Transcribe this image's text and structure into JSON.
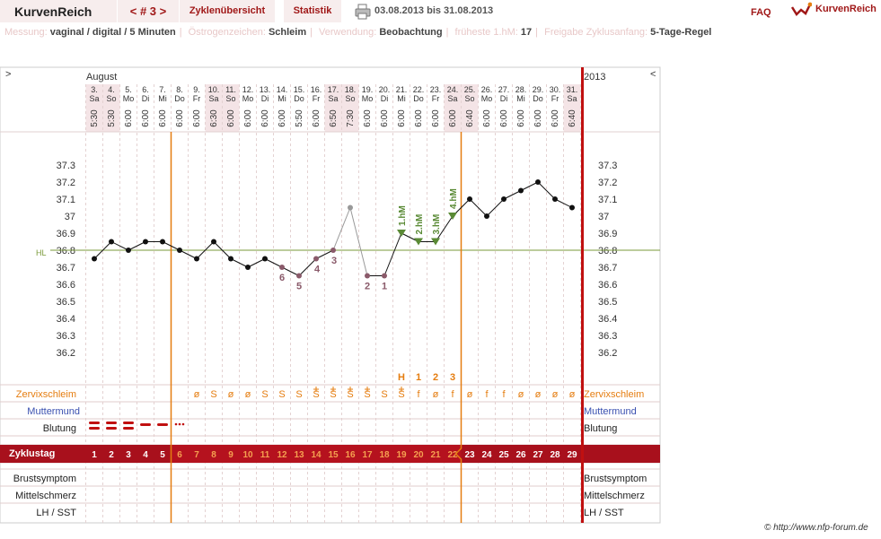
{
  "header": {
    "brand": "KurvenReich",
    "cycle_nav": "< # 3 >",
    "tabs": [
      "Zyklenübersicht",
      "Statistik"
    ],
    "print_icon": "printer-icon",
    "date_range": "03.08.2013 bis 31.08.2013",
    "faq": "FAQ",
    "logo_text": "KurvenReich",
    "logo_icon": "curve-logo-icon"
  },
  "settings": [
    {
      "label": "Messung:",
      "value": "vaginal / digital / 5 Minuten"
    },
    {
      "label": "Östrogenzeichen:",
      "value": "Schleim"
    },
    {
      "label": "Verwendung:",
      "value": "Beobachtung"
    },
    {
      "label": "früheste 1.hM:",
      "value": "17"
    },
    {
      "label": "Freigabe Zyklusanfang:",
      "value": "5-Tage-Regel"
    }
  ],
  "chart": {
    "nav_left": ">",
    "nav_right": "<",
    "month": "August",
    "year": "2013",
    "hl_label": "HL",
    "hl_value": 36.8,
    "y_ticks": [
      "37.3",
      "37.2",
      "37.1",
      "37",
      "36.9",
      "36.8",
      "36.7",
      "36.6",
      "36.5",
      "36.4",
      "36.3",
      "36.2"
    ],
    "days": [
      {
        "date": "3.",
        "wd": "Sa",
        "time": "5:30",
        "we": true
      },
      {
        "date": "4.",
        "wd": "So",
        "time": "5:30",
        "we": true
      },
      {
        "date": "5.",
        "wd": "Mo",
        "time": "6:00",
        "we": false
      },
      {
        "date": "6.",
        "wd": "Di",
        "time": "6:00",
        "we": false
      },
      {
        "date": "7.",
        "wd": "Mi",
        "time": "6:00",
        "we": false
      },
      {
        "date": "8.",
        "wd": "Do",
        "time": "6:00",
        "we": false
      },
      {
        "date": "9.",
        "wd": "Fr",
        "time": "6:00",
        "we": false
      },
      {
        "date": "10.",
        "wd": "Sa",
        "time": "6:30",
        "we": true
      },
      {
        "date": "11.",
        "wd": "So",
        "time": "6:00",
        "we": true
      },
      {
        "date": "12.",
        "wd": "Mo",
        "time": "6:00",
        "we": false
      },
      {
        "date": "13.",
        "wd": "Di",
        "time": "6:00",
        "we": false
      },
      {
        "date": "14.",
        "wd": "Mi",
        "time": "6:00",
        "we": false
      },
      {
        "date": "15.",
        "wd": "Do",
        "time": "5:50",
        "we": false
      },
      {
        "date": "16.",
        "wd": "Fr",
        "time": "6:00",
        "we": false
      },
      {
        "date": "17.",
        "wd": "Sa",
        "time": "6:50",
        "we": true
      },
      {
        "date": "18.",
        "wd": "So",
        "time": "7:30",
        "we": true
      },
      {
        "date": "19.",
        "wd": "Mo",
        "time": "6:00",
        "we": false
      },
      {
        "date": "20.",
        "wd": "Di",
        "time": "6:00",
        "we": false
      },
      {
        "date": "21.",
        "wd": "Mi",
        "time": "6:00",
        "we": false
      },
      {
        "date": "22.",
        "wd": "Do",
        "time": "6:00",
        "we": false
      },
      {
        "date": "23.",
        "wd": "Fr",
        "time": "6:00",
        "we": false
      },
      {
        "date": "24.",
        "wd": "Sa",
        "time": "6:00",
        "we": true
      },
      {
        "date": "25.",
        "wd": "So",
        "time": "6:40",
        "we": true
      },
      {
        "date": "26.",
        "wd": "Mo",
        "time": "6:00",
        "we": false
      },
      {
        "date": "27.",
        "wd": "Di",
        "time": "6:00",
        "we": false
      },
      {
        "date": "28.",
        "wd": "Mi",
        "time": "6:00",
        "we": false
      },
      {
        "date": "29.",
        "wd": "Do",
        "time": "6:00",
        "we": false
      },
      {
        "date": "30.",
        "wd": "Fr",
        "time": "6:00",
        "we": false
      },
      {
        "date": "31.",
        "wd": "Sa",
        "time": "6:40",
        "we": true
      }
    ],
    "temps": [
      36.75,
      36.85,
      36.8,
      36.85,
      36.85,
      36.8,
      36.75,
      36.85,
      36.75,
      36.7,
      36.75,
      36.7,
      36.65,
      36.75,
      36.8,
      37.05,
      36.65,
      36.65,
      36.9,
      36.85,
      36.85,
      37.0,
      37.1,
      37.0,
      37.1,
      37.15,
      37.2,
      37.1,
      37.05
    ],
    "point_styles": [
      "n",
      "n",
      "n",
      "n",
      "n",
      "n",
      "n",
      "n",
      "n",
      "n",
      "n",
      "c",
      "c",
      "c",
      "c",
      "x",
      "c",
      "c",
      "m",
      "m",
      "m",
      "m",
      "n",
      "n",
      "n",
      "n",
      "n",
      "n",
      "n"
    ],
    "count_labels": {
      "11": "6",
      "12": "5",
      "13": "4",
      "14": "3",
      "16": "2",
      "17": "1"
    },
    "hm_labels": {
      "18": "1.hM",
      "19": "2.hM",
      "20": "3.hM",
      "21": "4.hM"
    },
    "marker_row": {
      "18": "H",
      "19": "1",
      "20": "2",
      "21": "3"
    },
    "row_labels": {
      "cervix": "Zervixschleim",
      "muttermund": "Muttermund",
      "blutung": "Blutung",
      "zyklustag": "Zyklustag",
      "brust": "Brustsymptom",
      "mittelschmerz": "Mittelschmerz",
      "lhsst": "LH / SST"
    },
    "cervix": [
      "",
      "",
      "",
      "",
      "",
      "",
      "ø",
      "S",
      "ø",
      "ø",
      "S",
      "S",
      "S",
      "S+",
      "S+",
      "S+",
      "S+",
      "S",
      "S+",
      "f",
      "ø",
      "f",
      "ø",
      "f",
      "f",
      "ø",
      "ø",
      "ø",
      "ø"
    ],
    "cycle_days": [
      "1",
      "2",
      "3",
      "4",
      "5",
      "6",
      "7",
      "8",
      "9",
      "10",
      "11",
      "12",
      "13",
      "14",
      "15",
      "16",
      "17",
      "18",
      "19",
      "20",
      "21",
      "22",
      "23",
      "24",
      "25",
      "26",
      "27",
      "28",
      "29"
    ],
    "bleeding": [
      "heavy",
      "heavy",
      "heavy",
      "medium",
      "medium",
      "spotting"
    ]
  },
  "colors": {
    "accent": "#a01818",
    "orange": "#e57d10",
    "hl_line": "#7a9a3a",
    "hm_green": "#5a8a35",
    "lilac": "#8a5a6a",
    "muttermund": "#3a50b0",
    "weekend_bg": "#f4e4e6"
  },
  "footer": "© http://www.nfp-forum.de"
}
